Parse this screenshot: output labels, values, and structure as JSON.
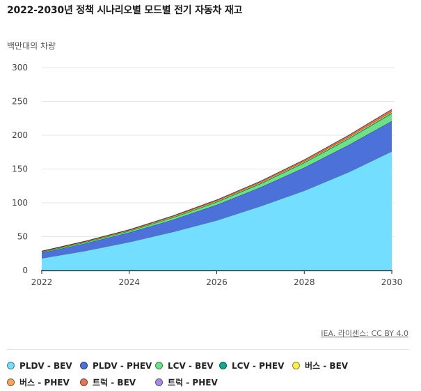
{
  "chart_data": {
    "type": "area",
    "stacked": true,
    "title": "2022-2030년 정책 시나리오별 모드별 전기 자동차 재고",
    "ylabel": "백만대의 차량",
    "xlabel": "",
    "x": [
      2022,
      2023,
      2024,
      2025,
      2026,
      2027,
      2028,
      2029,
      2030
    ],
    "xticks": [
      "2022",
      "2024",
      "2026",
      "2028",
      "2030"
    ],
    "yticks": [
      "0",
      "50",
      "100",
      "150",
      "200",
      "250",
      "300"
    ],
    "ylim": [
      0,
      300
    ],
    "grid": true,
    "legend_position": "bottom",
    "series": [
      {
        "name": "PLDV - BEV",
        "color": "#73DEFF",
        "values": [
          18,
          29,
          42,
          57,
          74,
          95,
          118,
          145,
          176
        ]
      },
      {
        "name": "PLDV - PHEV",
        "color": "#4C72D9",
        "values": [
          8,
          11,
          14,
          18,
          23,
          28,
          34,
          40,
          45
        ]
      },
      {
        "name": "LCV - BEV",
        "color": "#6FE08A",
        "values": [
          1,
          1.5,
          2,
          3,
          4,
          5,
          7,
          9,
          11
        ]
      },
      {
        "name": "LCV - PHEV",
        "color": "#16A88E",
        "values": [
          0.3,
          0.4,
          0.5,
          0.6,
          0.7,
          0.8,
          0.9,
          1,
          1.1
        ]
      },
      {
        "name": "버스 - BEV",
        "color": "#FFEE4D",
        "values": [
          0.8,
          0.9,
          1.0,
          1.1,
          1.2,
          1.3,
          1.4,
          1.5,
          1.6
        ]
      },
      {
        "name": "버스 - PHEV",
        "color": "#F5A65B",
        "values": [
          0.1,
          0.1,
          0.1,
          0.1,
          0.1,
          0.1,
          0.1,
          0.1,
          0.1
        ]
      },
      {
        "name": "트럭 - BEV",
        "color": "#E8744F",
        "values": [
          0.3,
          0.4,
          0.6,
          0.9,
          1.2,
          1.6,
          2.1,
          2.6,
          3.2
        ]
      },
      {
        "name": "트럭 - PHEV",
        "color": "#A98BE3",
        "values": [
          0.1,
          0.1,
          0.1,
          0.1,
          0.2,
          0.2,
          0.2,
          0.3,
          0.3
        ]
      }
    ]
  },
  "credit": "IEA. 라이센스: CC BY 4.0"
}
